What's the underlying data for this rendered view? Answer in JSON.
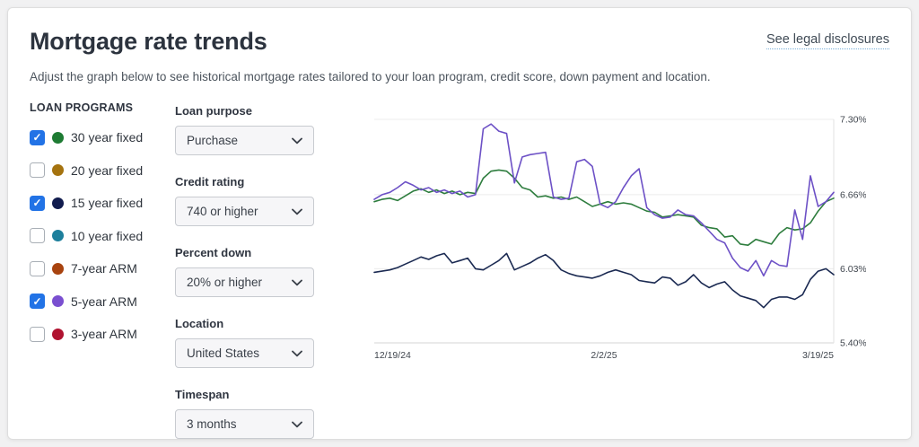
{
  "page": {
    "title": "Mortgage rate trends",
    "legal_link": "See legal disclosures",
    "subtitle": "Adjust the graph below to see historical mortgage rates tailored to your loan program, credit score, down payment and location."
  },
  "loan_programs": {
    "heading": "LOAN PROGRAMS",
    "checkbox_checked_color": "#2273e6",
    "items": [
      {
        "label": "30 year fixed",
        "checked": true,
        "color": "#1e7b33"
      },
      {
        "label": "20 year fixed",
        "checked": false,
        "color": "#a5730f"
      },
      {
        "label": "15 year fixed",
        "checked": true,
        "color": "#111c4e"
      },
      {
        "label": "10 year fixed",
        "checked": false,
        "color": "#1d7f9c"
      },
      {
        "label": "7-year ARM",
        "checked": false,
        "color": "#a8430f"
      },
      {
        "label": "5-year ARM",
        "checked": true,
        "color": "#7a4fd0"
      },
      {
        "label": "3-year ARM",
        "checked": false,
        "color": "#b01330"
      }
    ]
  },
  "filters": [
    {
      "name": "loan-purpose",
      "label": "Loan purpose",
      "value": "Purchase"
    },
    {
      "name": "credit-rating",
      "label": "Credit rating",
      "value": "740 or higher"
    },
    {
      "name": "percent-down",
      "label": "Percent down",
      "value": "20% or higher"
    },
    {
      "name": "location",
      "label": "Location",
      "value": "United States"
    },
    {
      "name": "timespan",
      "label": "Timespan",
      "value": "3 months"
    }
  ],
  "chart_data": {
    "type": "line",
    "title": "",
    "xlabel": "",
    "ylabel": "",
    "xticks": [
      "12/19/24",
      "2/2/25",
      "3/19/25"
    ],
    "yticks": [
      7.3,
      6.66,
      6.03,
      5.4
    ],
    "ytick_labels": [
      "7.30%",
      "6.66%",
      "6.03%",
      "5.40%"
    ],
    "ylim": [
      5.4,
      7.3
    ],
    "grid": "horizontal",
    "legend": "none",
    "series": [
      {
        "name": "30 year fixed",
        "color": "#2e7d3e",
        "values": [
          6.6,
          6.62,
          6.63,
          6.61,
          6.65,
          6.69,
          6.71,
          6.68,
          6.7,
          6.67,
          6.69,
          6.66,
          6.68,
          6.67,
          6.8,
          6.86,
          6.87,
          6.86,
          6.8,
          6.72,
          6.7,
          6.64,
          6.65,
          6.63,
          6.64,
          6.62,
          6.64,
          6.6,
          6.56,
          6.58,
          6.6,
          6.58,
          6.59,
          6.58,
          6.55,
          6.52,
          6.51,
          6.47,
          6.48,
          6.49,
          6.48,
          6.47,
          6.4,
          6.38,
          6.37,
          6.3,
          6.31,
          6.24,
          6.23,
          6.28,
          6.26,
          6.24,
          6.33,
          6.38,
          6.36,
          6.37,
          6.42,
          6.52,
          6.6,
          6.63
        ]
      },
      {
        "name": "15 year fixed",
        "color": "#1b2a52",
        "values": [
          6.0,
          6.01,
          6.02,
          6.04,
          6.07,
          6.1,
          6.13,
          6.11,
          6.14,
          6.16,
          6.08,
          6.1,
          6.12,
          6.03,
          6.02,
          6.06,
          6.1,
          6.16,
          6.02,
          6.05,
          6.08,
          6.12,
          6.15,
          6.1,
          6.02,
          5.99,
          5.97,
          5.96,
          5.95,
          5.97,
          6.0,
          6.02,
          6.0,
          5.98,
          5.93,
          5.92,
          5.91,
          5.96,
          5.95,
          5.89,
          5.92,
          5.98,
          5.91,
          5.87,
          5.9,
          5.92,
          5.85,
          5.8,
          5.78,
          5.76,
          5.7,
          5.77,
          5.79,
          5.79,
          5.77,
          5.81,
          5.94,
          6.01,
          6.03,
          5.98
        ]
      },
      {
        "name": "5-year ARM",
        "color": "#6d51c6",
        "values": [
          6.62,
          6.66,
          6.68,
          6.72,
          6.77,
          6.74,
          6.7,
          6.72,
          6.68,
          6.7,
          6.67,
          6.69,
          6.64,
          6.66,
          7.22,
          7.26,
          7.2,
          7.18,
          6.76,
          6.98,
          7.0,
          7.01,
          7.02,
          6.64,
          6.62,
          6.63,
          6.94,
          6.96,
          6.9,
          6.58,
          6.55,
          6.6,
          6.72,
          6.82,
          6.88,
          6.55,
          6.49,
          6.46,
          6.47,
          6.53,
          6.49,
          6.48,
          6.42,
          6.35,
          6.28,
          6.25,
          6.12,
          6.04,
          6.01,
          6.1,
          5.97,
          6.1,
          6.06,
          6.05,
          6.53,
          6.28,
          6.82,
          6.56,
          6.6,
          6.68
        ]
      }
    ]
  }
}
